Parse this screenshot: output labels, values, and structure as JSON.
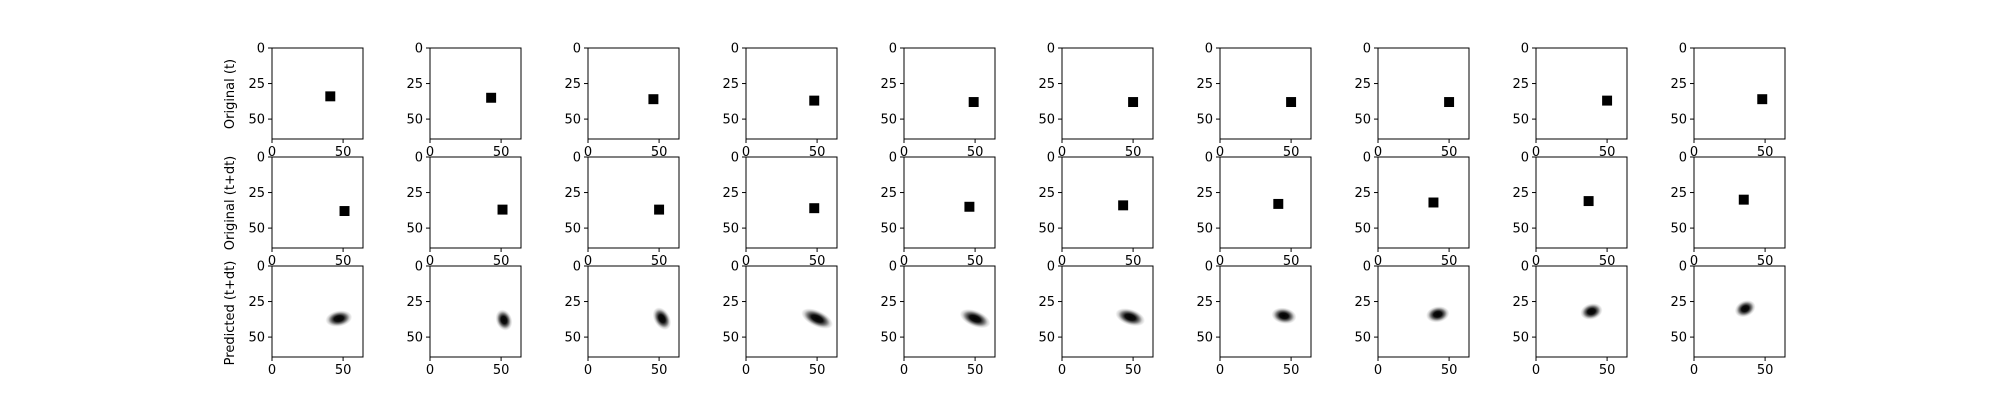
{
  "figure": {
    "row_labels": [
      "Original (t)",
      "Original (t+dt)",
      "Predicted (t+dt)"
    ]
  },
  "axes": {
    "image_size": 64,
    "x_ticks": [
      0,
      50
    ],
    "y_ticks": [
      0,
      25,
      50
    ]
  },
  "chart_data": {
    "type": "heatmap",
    "description_of_values": "Each panel is a 64x64 image; values are centers (in pixel units) of the dark object.",
    "rows": [
      {
        "name": "Original (t)",
        "kind": "square",
        "square_size": 7,
        "centers": [
          [
            41,
            34
          ],
          [
            43,
            35
          ],
          [
            46,
            36
          ],
          [
            48,
            37
          ],
          [
            49,
            38
          ],
          [
            50,
            38
          ],
          [
            50,
            38
          ],
          [
            50,
            38
          ],
          [
            50,
            37
          ],
          [
            48,
            36
          ]
        ]
      },
      {
        "name": "Original (t+dt)",
        "kind": "square",
        "square_size": 7,
        "centers": [
          [
            51,
            38
          ],
          [
            51,
            37
          ],
          [
            50,
            37
          ],
          [
            48,
            36
          ],
          [
            46,
            35
          ],
          [
            43,
            34
          ],
          [
            41,
            33
          ],
          [
            39,
            32
          ],
          [
            37,
            31
          ],
          [
            35,
            30
          ]
        ]
      },
      {
        "name": "Predicted (t+dt)",
        "kind": "blob",
        "centers": [
          [
            47,
            37
          ],
          [
            52,
            38
          ],
          [
            52,
            37
          ],
          [
            50,
            37
          ],
          [
            50,
            37
          ],
          [
            48,
            36
          ],
          [
            45,
            35
          ],
          [
            42,
            34
          ],
          [
            39,
            32
          ],
          [
            36,
            30
          ]
        ],
        "elongation": [
          1.5,
          1.2,
          1.35,
          1.9,
          1.8,
          1.7,
          1.4,
          1.3,
          1.25,
          1.2
        ],
        "angle_deg": [
          -10,
          70,
          60,
          25,
          22,
          18,
          10,
          -10,
          -15,
          -25
        ]
      }
    ]
  }
}
